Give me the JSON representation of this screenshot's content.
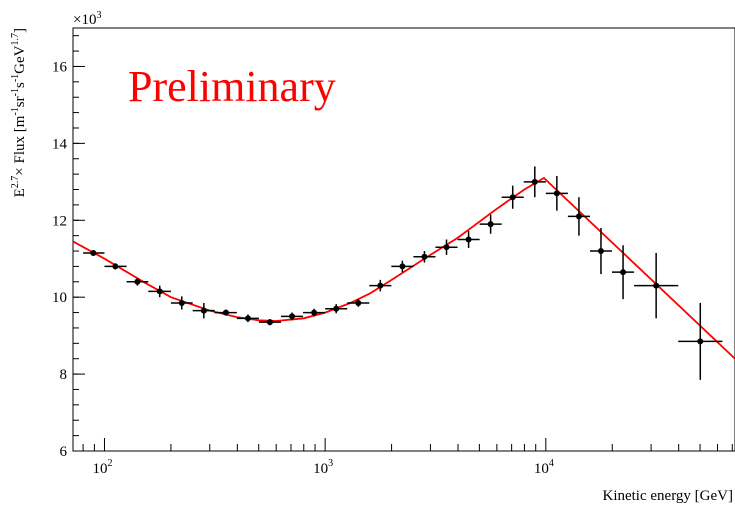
{
  "chart_data": {
    "type": "scatter",
    "title": "",
    "xlabel": "Kinetic energy [GeV]",
    "ylabel_parts": {
      "e": "E",
      "e_exp": "2.7",
      "flux": "× Flux [m",
      "m_exp": "-1",
      "sr": "sr",
      "sr_exp": "-1",
      "s": "s",
      "s_exp": "-1",
      "gev": "GeV",
      "gev_exp": "1.7",
      "close": "]"
    },
    "y_multiplier": {
      "base": "×10",
      "exp": "3"
    },
    "annotation": "Preliminary",
    "annotation_color": "#ff0000",
    "fit_color": "#ff0000",
    "marker_color": "#000000",
    "x_scale": "log",
    "xlim": [
      72,
      72000
    ],
    "ylim": [
      6,
      17
    ],
    "x_ticks": [
      {
        "value": 100,
        "base": "10",
        "exp": "2"
      },
      {
        "value": 1000,
        "base": "10",
        "exp": "3"
      },
      {
        "value": 10000,
        "base": "10",
        "exp": "4"
      }
    ],
    "y_ticks": [
      6,
      8,
      10,
      12,
      14,
      16
    ],
    "points": [
      {
        "x": 89,
        "y": 11.15,
        "x_lo": 80,
        "x_hi": 100,
        "y_err": 0.07
      },
      {
        "x": 112,
        "y": 10.8,
        "x_lo": 100,
        "x_hi": 126,
        "y_err": 0.08
      },
      {
        "x": 141,
        "y": 10.4,
        "x_lo": 126,
        "x_hi": 158,
        "y_err": 0.1
      },
      {
        "x": 178,
        "y": 10.15,
        "x_lo": 158,
        "x_hi": 200,
        "y_err": 0.15
      },
      {
        "x": 224,
        "y": 9.85,
        "x_lo": 200,
        "x_hi": 251,
        "y_err": 0.17
      },
      {
        "x": 282,
        "y": 9.65,
        "x_lo": 251,
        "x_hi": 316,
        "y_err": 0.2
      },
      {
        "x": 355,
        "y": 9.6,
        "x_lo": 316,
        "x_hi": 398,
        "y_err": 0.08
      },
      {
        "x": 447,
        "y": 9.45,
        "x_lo": 398,
        "x_hi": 501,
        "y_err": 0.1
      },
      {
        "x": 562,
        "y": 9.35,
        "x_lo": 501,
        "x_hi": 631,
        "y_err": 0.08
      },
      {
        "x": 708,
        "y": 9.5,
        "x_lo": 631,
        "x_hi": 794,
        "y_err": 0.1
      },
      {
        "x": 891,
        "y": 9.6,
        "x_lo": 794,
        "x_hi": 1000,
        "y_err": 0.1
      },
      {
        "x": 1122,
        "y": 9.7,
        "x_lo": 1000,
        "x_hi": 1259,
        "y_err": 0.12
      },
      {
        "x": 1413,
        "y": 9.85,
        "x_lo": 1259,
        "x_hi": 1585,
        "y_err": 0.1
      },
      {
        "x": 1778,
        "y": 10.3,
        "x_lo": 1585,
        "x_hi": 1995,
        "y_err": 0.15
      },
      {
        "x": 2239,
        "y": 10.8,
        "x_lo": 1995,
        "x_hi": 2512,
        "y_err": 0.15
      },
      {
        "x": 2818,
        "y": 11.05,
        "x_lo": 2512,
        "x_hi": 3162,
        "y_err": 0.15
      },
      {
        "x": 3548,
        "y": 11.3,
        "x_lo": 3162,
        "x_hi": 3981,
        "y_err": 0.2
      },
      {
        "x": 4467,
        "y": 11.5,
        "x_lo": 3981,
        "x_hi": 5012,
        "y_err": 0.22
      },
      {
        "x": 5623,
        "y": 11.9,
        "x_lo": 5012,
        "x_hi": 6310,
        "y_err": 0.25
      },
      {
        "x": 7079,
        "y": 12.6,
        "x_lo": 6310,
        "x_hi": 7943,
        "y_err": 0.3
      },
      {
        "x": 8913,
        "y": 13.0,
        "x_lo": 7943,
        "x_hi": 10000,
        "y_err": 0.4
      },
      {
        "x": 11220,
        "y": 12.7,
        "x_lo": 10000,
        "x_hi": 12590,
        "y_err": 0.45
      },
      {
        "x": 14130,
        "y": 12.1,
        "x_lo": 12590,
        "x_hi": 15850,
        "y_err": 0.5
      },
      {
        "x": 17780,
        "y": 11.2,
        "x_lo": 15850,
        "x_hi": 19950,
        "y_err": 0.6
      },
      {
        "x": 22390,
        "y": 10.65,
        "x_lo": 19950,
        "x_hi": 25120,
        "y_err": 0.7
      },
      {
        "x": 31620,
        "y": 10.3,
        "x_lo": 25120,
        "x_hi": 39810,
        "y_err": 0.85
      },
      {
        "x": 50120,
        "y": 8.85,
        "x_lo": 39810,
        "x_hi": 63100,
        "y_err": 1.0
      }
    ],
    "fit": [
      {
        "x": 72,
        "y": 11.45
      },
      {
        "x": 100,
        "y": 11.0
      },
      {
        "x": 150,
        "y": 10.4
      },
      {
        "x": 200,
        "y": 10.0
      },
      {
        "x": 300,
        "y": 9.65
      },
      {
        "x": 400,
        "y": 9.48
      },
      {
        "x": 500,
        "y": 9.4
      },
      {
        "x": 600,
        "y": 9.38
      },
      {
        "x": 800,
        "y": 9.45
      },
      {
        "x": 1000,
        "y": 9.6
      },
      {
        "x": 1300,
        "y": 9.85
      },
      {
        "x": 1600,
        "y": 10.1
      },
      {
        "x": 2000,
        "y": 10.45
      },
      {
        "x": 3000,
        "y": 11.1
      },
      {
        "x": 4000,
        "y": 11.55
      },
      {
        "x": 6000,
        "y": 12.3
      },
      {
        "x": 8000,
        "y": 12.8
      },
      {
        "x": 9800,
        "y": 13.1
      },
      {
        "x": 72000,
        "y": 8.4
      }
    ]
  }
}
